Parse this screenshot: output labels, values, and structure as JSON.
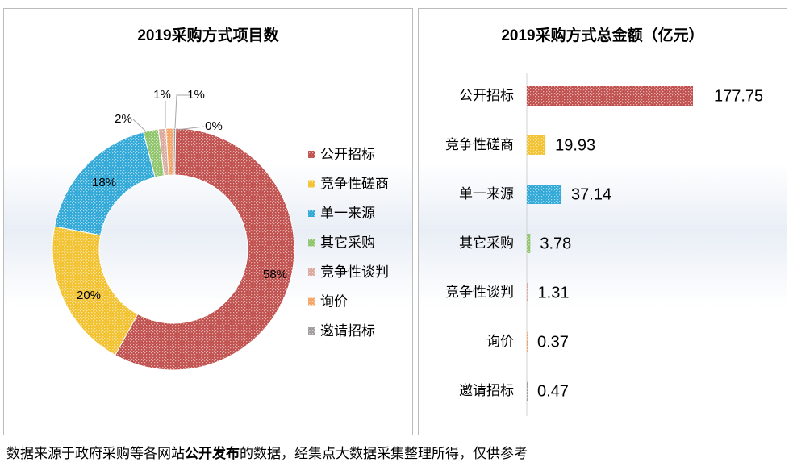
{
  "chart_data": [
    {
      "type": "pie",
      "variant": "donut",
      "title": "2019采购方式项目数",
      "categories": [
        "公开招标",
        "竞争性磋商",
        "单一来源",
        "其它采购",
        "竞争性谈判",
        "询价",
        "邀请招标"
      ],
      "values": [
        58,
        20,
        18,
        2,
        1,
        1,
        0
      ],
      "value_labels": [
        "58%",
        "20%",
        "18%",
        "2%",
        "1%",
        "1%",
        "0%"
      ],
      "colors": [
        "#c0504d",
        "#f2c12e",
        "#2fa8d8",
        "#8fc46b",
        "#d9a79b",
        "#f4a261",
        "#a09a9a"
      ],
      "legend_position": "right"
    },
    {
      "type": "bar",
      "orientation": "horizontal",
      "title": "2019采购方式总金额（亿元）",
      "categories": [
        "公开招标",
        "竞争性磋商",
        "单一来源",
        "其它采购",
        "竞争性谈判",
        "询价",
        "邀请招标"
      ],
      "values": [
        177.75,
        19.93,
        37.14,
        3.78,
        1.31,
        0.37,
        0.47
      ],
      "value_labels": [
        "177.75",
        "19.93",
        "37.14",
        "3.78",
        "1.31",
        "0.37",
        "0.47"
      ],
      "colors": [
        "#c0504d",
        "#f2c12e",
        "#2fa8d8",
        "#8fc46b",
        "#d9a79b",
        "#f4a261",
        "#a09a9a"
      ],
      "xlim": [
        0,
        177.75
      ],
      "grid": false
    }
  ],
  "footer": {
    "note_pre": "数据来源于政府采购等各网站",
    "note_bold": "公开发布",
    "note_post": "的数据，经集点大数据采集整理所得，仅供参考"
  }
}
